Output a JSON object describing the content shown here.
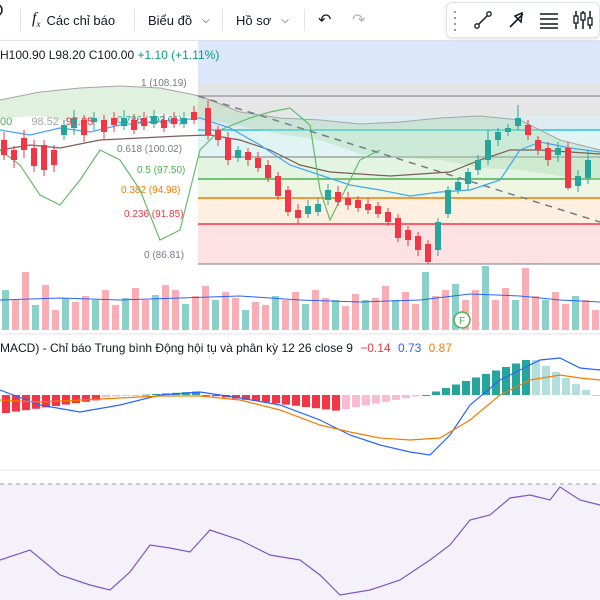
{
  "toolbar": {
    "indicators_label": "Các chỉ báo",
    "chart_label": "Biểu đồ",
    "template_label": "Hồ sơ"
  },
  "ohlc": {
    "high": "H100.90",
    "low": "L98.20",
    "close": "C100.00",
    "change": "+1.10 (+1.11%)"
  },
  "ichimoku_partial": {
    "value_a": "00",
    "value_b": "98.52",
    "value_c": "97.85"
  },
  "fib_levels": [
    {
      "label": "1 (108.19)",
      "color": "#787b86"
    },
    {
      "label": "0.786 (103.61)",
      "color": "#089981"
    },
    {
      "label": "0.618 (100.02)",
      "color": "#787b86"
    },
    {
      "label": "0.5 (97.50)",
      "color": "#4caf50"
    },
    {
      "label": "0.382 (94.98)",
      "color": "#f57c00"
    },
    {
      "label": "0.236 (91.85)",
      "color": "#f23645"
    },
    {
      "label": "0 (86.81)",
      "color": "#787b86"
    }
  ],
  "macd": {
    "title": "MACD) - Chỉ báo Trung bình Động hội tụ và phân kỳ",
    "params": "12 26 close 9",
    "histogram": "−0.14",
    "macd_value": "0.73",
    "signal_value": "0.87"
  },
  "event_marker": "F",
  "colors": {
    "up": "#26a69a",
    "down": "#f23645",
    "macd_line": "#2962ff",
    "signal_line": "#f57c00",
    "rsi_line": "#7e57c2",
    "rsi_band": "#ede7f6"
  },
  "icons": [
    "fx-icon",
    "chevron-down-icon",
    "undo-icon",
    "redo-icon",
    "trend-line-icon",
    "arrow-tool-icon",
    "fib-tool-icon",
    "long-position-icon"
  ]
}
